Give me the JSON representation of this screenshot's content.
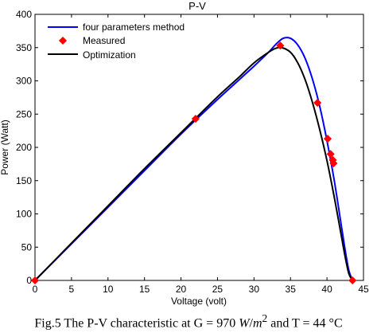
{
  "chart_data": {
    "type": "line",
    "title": "P-V",
    "xlabel": "Voltage (volt)",
    "ylabel": "Power (Watt)",
    "xlim": [
      0,
      45
    ],
    "ylim": [
      0,
      400
    ],
    "xticks": [
      0,
      5,
      10,
      15,
      20,
      25,
      30,
      35,
      40,
      45
    ],
    "yticks": [
      0,
      50,
      100,
      150,
      200,
      250,
      300,
      350,
      400
    ],
    "grid": false,
    "legend_position": "top-left",
    "series": [
      {
        "name": "four parameters method",
        "color": "#0000ff",
        "style": "line",
        "x": [
          0,
          5,
          10,
          15,
          20,
          25,
          28,
          30,
          32,
          33,
          34,
          35,
          36,
          37,
          38,
          39,
          40,
          41,
          42,
          42.5,
          43,
          43.5
        ],
        "y": [
          0,
          55,
          110,
          165,
          220,
          272,
          302,
          322,
          343,
          355,
          364,
          364,
          354,
          334,
          303,
          262,
          210,
          150,
          80,
          45,
          15,
          0
        ]
      },
      {
        "name": "Measured",
        "color": "#ff0000",
        "style": "markers",
        "x": [
          0,
          22,
          33.6,
          38.7,
          40.1,
          40.5,
          40.8,
          40.9,
          43.5
        ],
        "y": [
          0,
          243,
          353,
          267,
          213,
          190,
          181,
          176,
          0
        ]
      },
      {
        "name": "Optimization",
        "color": "#000000",
        "style": "line",
        "x": [
          0,
          5,
          10,
          15,
          20,
          25,
          28,
          30,
          32,
          33,
          33.8,
          35,
          36,
          37,
          38,
          39,
          40,
          41,
          42,
          42.5,
          43,
          43.5
        ],
        "y": [
          0,
          56,
          112,
          168,
          222,
          276,
          306,
          327,
          343,
          349,
          350,
          343,
          327,
          302,
          268,
          227,
          180,
          125,
          65,
          35,
          10,
          0
        ]
      }
    ]
  },
  "caption": {
    "prefix": "Fig.5 The P-V characteristic at G = 970 ",
    "unit_var": "W",
    "unit_sep": "/",
    "unit_var2": "m",
    "unit_exp": "2",
    "suffix": " and T = 44 °C"
  }
}
